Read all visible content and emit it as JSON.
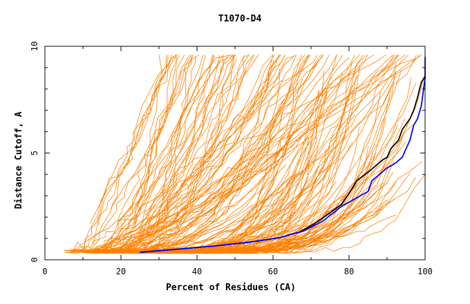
{
  "chart_data": {
    "type": "line",
    "title": "T1070-D4",
    "xlabel": "Percent of Residues (CA)",
    "ylabel": "Distance Cutoff, A",
    "xlim": [
      0,
      100
    ],
    "ylim": [
      0,
      10
    ],
    "x_ticks": [
      0,
      20,
      40,
      60,
      80,
      100
    ],
    "x_tick_labels": [
      "0",
      "20",
      "40",
      "60",
      "80",
      "100"
    ],
    "y_ticks": [
      0,
      5,
      10
    ],
    "y_tick_labels": [
      "0",
      "5",
      "10"
    ],
    "grid": false,
    "background_series_color": "#ff8000",
    "highlight_series": [
      {
        "color": "#000000",
        "x": [
          25,
          35,
          45,
          55,
          62,
          67,
          71,
          75,
          78,
          80,
          82,
          85,
          87,
          89,
          90,
          91,
          93,
          94,
          96,
          97,
          98,
          99,
          100
        ],
        "y": [
          0.35,
          0.5,
          0.65,
          0.85,
          1.05,
          1.3,
          1.7,
          2.2,
          2.6,
          3.1,
          3.7,
          4.1,
          4.4,
          4.7,
          4.8,
          5.2,
          5.6,
          6.1,
          6.6,
          7.0,
          7.6,
          8.3,
          8.6
        ]
      },
      {
        "color": "#0000ff",
        "x": [
          25,
          35,
          45,
          55,
          62,
          68,
          73,
          78,
          82,
          85,
          86,
          88,
          90,
          92,
          94,
          96,
          97,
          98,
          99,
          100,
          100
        ],
        "y": [
          0.35,
          0.5,
          0.65,
          0.85,
          1.05,
          1.35,
          1.8,
          2.5,
          2.9,
          3.2,
          3.7,
          4.0,
          4.3,
          4.5,
          4.8,
          5.6,
          6.3,
          6.6,
          7.2,
          8.5,
          9.5
        ]
      }
    ]
  }
}
